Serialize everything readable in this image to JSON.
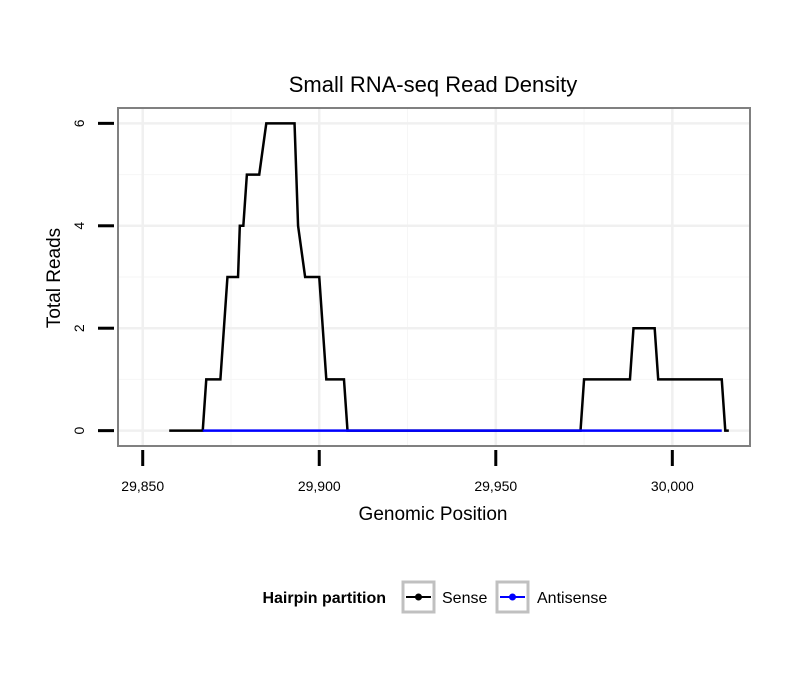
{
  "chart_data": {
    "type": "line",
    "title": "Small RNA-seq Read Density",
    "xlabel": "Genomic Position",
    "ylabel": "Total Reads",
    "xlim": [
      29843,
      30022
    ],
    "ylim": [
      -0.3,
      6.3
    ],
    "x_ticks": [
      29850,
      29900,
      29950,
      30000
    ],
    "x_tick_labels": [
      "29,850",
      "29,900",
      "29,950",
      "30,000"
    ],
    "y_ticks": [
      0,
      2,
      4,
      6
    ],
    "y_tick_labels": [
      "0",
      "2",
      "4",
      "6"
    ],
    "grid": true,
    "legend": {
      "title": "Hairpin partition",
      "position": "bottom",
      "entries": [
        {
          "label": "Sense",
          "color": "#000000"
        },
        {
          "label": "Antisense",
          "color": "#0000ff"
        }
      ]
    },
    "series": [
      {
        "name": "Sense",
        "color": "#000000",
        "x": [
          29857.5,
          29867,
          29868,
          29872,
          29874,
          29877,
          29877.5,
          29878.5,
          29879.5,
          29883,
          29885,
          29893,
          29894,
          29896,
          29900,
          29902,
          29907,
          29908,
          29974,
          29975,
          29988,
          29989,
          29995,
          29996,
          30014,
          30015,
          30016
        ],
        "y": [
          0,
          0,
          1,
          1,
          3,
          3,
          4,
          4,
          5,
          5,
          6,
          6,
          4,
          3,
          3,
          1,
          1,
          0,
          0,
          1,
          1,
          2,
          2,
          1,
          1,
          0,
          0
        ]
      },
      {
        "name": "Antisense",
        "color": "#0000ff",
        "x": [
          29867,
          30014
        ],
        "y": [
          0,
          0
        ]
      }
    ]
  }
}
